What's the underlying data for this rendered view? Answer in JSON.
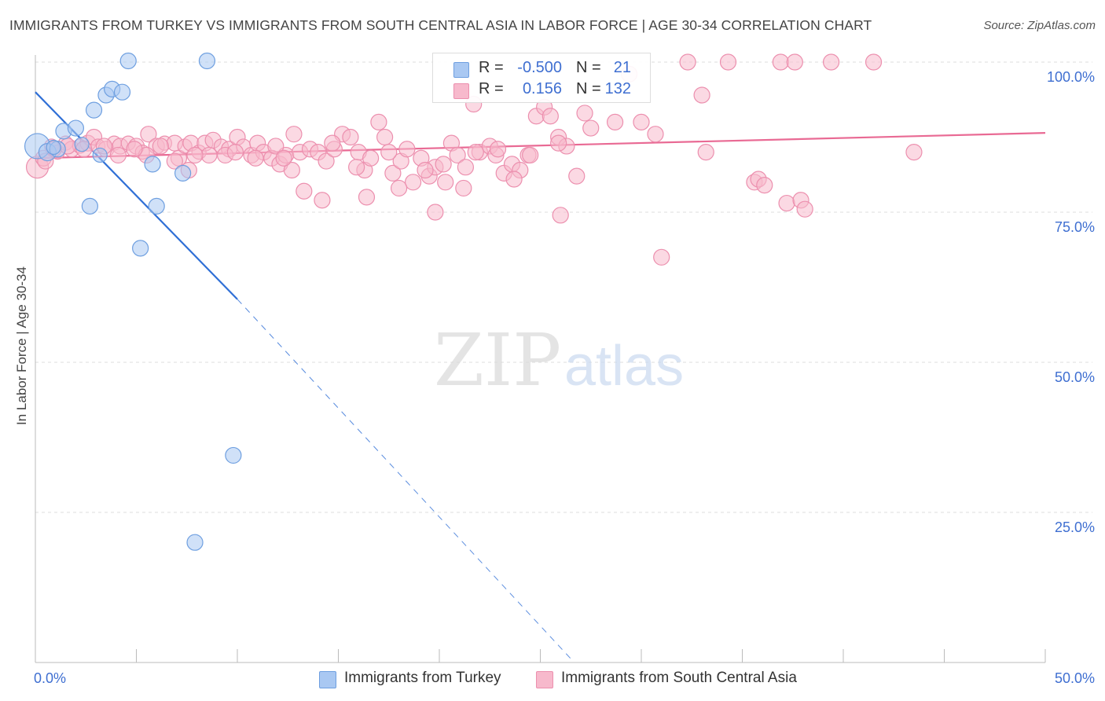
{
  "title": "IMMIGRANTS FROM TURKEY VS IMMIGRANTS FROM SOUTH CENTRAL ASIA IN LABOR FORCE | AGE 30-34 CORRELATION CHART",
  "source": "Source: ZipAtlas.com",
  "watermark": {
    "zip": "ZIP",
    "atlas": "atlas"
  },
  "colors": {
    "turkey_fill": "#a9c8f2",
    "turkey_stroke": "#6e9fe0",
    "turkey_line": "#2f6fd6",
    "sca_fill": "#f7b9cc",
    "sca_stroke": "#ec8fae",
    "sca_line": "#e96a94",
    "tick_label": "#3f6fd1",
    "grid": "#dddddd"
  },
  "stats_box": {
    "turkey": {
      "r_label": "R =",
      "r_value": "-0.500",
      "n_label": "N =",
      "n_value": "21"
    },
    "sca": {
      "r_label": "R =",
      "r_value": "0.156",
      "n_label": "N =",
      "n_value": "132"
    }
  },
  "legend": {
    "turkey": "Immigrants from Turkey",
    "sca": "Immigrants from South Central Asia"
  },
  "chart_data": {
    "type": "scatter",
    "title": "IMMIGRANTS FROM TURKEY VS IMMIGRANTS FROM SOUTH CENTRAL ASIA IN LABOR FORCE | AGE 30-34 CORRELATION CHART",
    "xlabel": "",
    "ylabel": "In Labor Force | Age 30-34",
    "xlim": [
      0,
      50
    ],
    "ylim": [
      0,
      100
    ],
    "x_tick_labels": [
      "0.0%",
      "50.0%"
    ],
    "y_ticks": [
      25,
      50,
      75,
      100
    ],
    "y_tick_labels": [
      "25.0%",
      "50.0%",
      "75.0%",
      "100.0%"
    ],
    "grid": true,
    "legend_position": "bottom",
    "series": [
      {
        "name": "Immigrants from Turkey",
        "r": -0.5,
        "n": 21,
        "trend": {
          "x_start": 0,
          "y_start": 95,
          "x_solid_end": 10,
          "y_solid_end": 60.5,
          "x_dash_end": 26.6,
          "y_dash_end": 0.3
        },
        "points": [
          [
            0.1,
            86,
            16
          ],
          [
            0.6,
            85,
            11
          ],
          [
            1.1,
            85.5,
            10
          ],
          [
            1.4,
            88.5,
            10
          ],
          [
            2.0,
            89,
            10
          ],
          [
            2.3,
            86.3,
            9
          ],
          [
            2.9,
            92,
            10
          ],
          [
            3.2,
            84.5,
            9
          ],
          [
            3.5,
            94.5,
            10
          ],
          [
            3.8,
            95.5,
            10
          ],
          [
            4.3,
            95,
            10
          ],
          [
            4.6,
            100.2,
            10
          ],
          [
            5.8,
            83,
            10
          ],
          [
            6.0,
            76,
            10
          ],
          [
            7.3,
            81.5,
            10
          ],
          [
            8.5,
            100.2,
            10
          ],
          [
            2.7,
            76,
            10
          ],
          [
            5.2,
            69,
            10
          ],
          [
            9.8,
            34.5,
            10
          ],
          [
            7.9,
            20,
            10
          ],
          [
            0.9,
            85.8,
            9
          ]
        ]
      },
      {
        "name": "Immigrants from South Central Asia",
        "r": 0.156,
        "n": 132,
        "trend": {
          "x_start": 0,
          "y_start": 84,
          "x_end": 50,
          "y_end": 88.2
        },
        "points": [
          [
            0.1,
            82.5,
            14
          ],
          [
            0.4,
            84,
            10
          ],
          [
            0.8,
            86,
            9
          ],
          [
            1.1,
            85,
            9
          ],
          [
            1.5,
            86.5,
            9
          ],
          [
            1.8,
            85.5,
            10
          ],
          [
            2.2,
            86,
            9
          ],
          [
            2.6,
            86.5,
            10
          ],
          [
            2.9,
            87.5,
            10
          ],
          [
            3.1,
            86,
            9
          ],
          [
            3.5,
            85.5,
            10
          ],
          [
            3.9,
            86.5,
            9
          ],
          [
            4.2,
            86,
            10
          ],
          [
            4.6,
            86.5,
            9
          ],
          [
            5.0,
            86,
            10
          ],
          [
            5.3,
            85,
            9
          ],
          [
            5.6,
            88,
            10
          ],
          [
            6.0,
            86,
            10
          ],
          [
            6.4,
            86.5,
            9
          ],
          [
            6.9,
            86.5,
            10
          ],
          [
            7.1,
            84,
            10
          ],
          [
            7.4,
            86,
            9
          ],
          [
            7.7,
            86.5,
            10
          ],
          [
            8.1,
            85,
            9
          ],
          [
            8.4,
            86.5,
            10
          ],
          [
            8.8,
            87,
            10
          ],
          [
            9.2,
            86,
            9
          ],
          [
            9.6,
            85.5,
            10
          ],
          [
            10.0,
            87.5,
            10
          ],
          [
            10.3,
            86,
            9
          ],
          [
            10.7,
            84.5,
            10
          ],
          [
            11.0,
            86.5,
            10
          ],
          [
            11.3,
            85,
            10
          ],
          [
            11.7,
            84,
            10
          ],
          [
            12.1,
            83,
            10
          ],
          [
            12.4,
            84.5,
            10
          ],
          [
            12.8,
            88,
            10
          ],
          [
            13.1,
            85,
            10
          ],
          [
            13.6,
            85.5,
            10
          ],
          [
            14.0,
            85,
            10
          ],
          [
            14.4,
            83.5,
            10
          ],
          [
            14.8,
            85.5,
            10
          ],
          [
            15.2,
            88,
            10
          ],
          [
            15.6,
            87.5,
            10
          ],
          [
            16.0,
            85,
            10
          ],
          [
            16.3,
            82,
            10
          ],
          [
            16.6,
            84,
            10
          ],
          [
            17.0,
            90,
            10
          ],
          [
            17.3,
            87.5,
            10
          ],
          [
            17.7,
            81.5,
            10
          ],
          [
            18.1,
            83.5,
            10
          ],
          [
            18.4,
            85.5,
            10
          ],
          [
            18.7,
            80,
            10
          ],
          [
            19.1,
            84,
            10
          ],
          [
            19.5,
            81,
            10
          ],
          [
            19.8,
            82.5,
            10
          ],
          [
            20.2,
            83,
            10
          ],
          [
            20.6,
            86.5,
            10
          ],
          [
            20.9,
            84.5,
            10
          ],
          [
            21.3,
            82.5,
            10
          ],
          [
            21.7,
            93,
            10
          ],
          [
            22.0,
            85,
            10
          ],
          [
            22.5,
            86,
            10
          ],
          [
            22.8,
            84.5,
            10
          ],
          [
            23.2,
            81.5,
            10
          ],
          [
            23.6,
            83,
            10
          ],
          [
            24.0,
            82,
            10
          ],
          [
            24.4,
            84.5,
            10
          ],
          [
            24.8,
            91,
            10
          ],
          [
            25.2,
            92.5,
            10
          ],
          [
            25.5,
            91,
            10
          ],
          [
            25.9,
            87.5,
            10
          ],
          [
            26.3,
            86,
            10
          ],
          [
            26.8,
            81,
            10
          ],
          [
            27.2,
            91.5,
            10
          ],
          [
            27.5,
            89,
            10
          ],
          [
            28.7,
            90,
            10
          ],
          [
            29.4,
            98,
            10
          ],
          [
            30.0,
            90,
            10
          ],
          [
            30.7,
            88,
            10
          ],
          [
            32.3,
            100,
            10
          ],
          [
            33.0,
            94.5,
            10
          ],
          [
            33.2,
            85,
            10
          ],
          [
            34.3,
            100,
            10
          ],
          [
            35.6,
            80,
            10
          ],
          [
            35.8,
            80.5,
            10
          ],
          [
            36.1,
            79.5,
            10
          ],
          [
            36.9,
            100,
            10
          ],
          [
            37.2,
            76.5,
            10
          ],
          [
            37.6,
            100,
            10
          ],
          [
            37.9,
            77,
            10
          ],
          [
            38.1,
            75.5,
            10
          ],
          [
            39.4,
            100,
            10
          ],
          [
            41.5,
            100,
            10
          ],
          [
            43.5,
            85,
            10
          ],
          [
            31.0,
            67.5,
            10
          ],
          [
            26.0,
            74.5,
            10
          ],
          [
            19.8,
            75,
            10
          ],
          [
            16.4,
            77.5,
            10
          ],
          [
            14.2,
            77,
            10
          ],
          [
            13.3,
            78.5,
            10
          ],
          [
            18.0,
            79,
            10
          ],
          [
            21.2,
            79,
            10
          ],
          [
            23.7,
            80.5,
            10
          ],
          [
            11.9,
            86,
            10
          ],
          [
            10.9,
            84,
            10
          ],
          [
            9.4,
            84.5,
            10
          ],
          [
            8.6,
            84.5,
            10
          ],
          [
            7.9,
            84.5,
            10
          ],
          [
            6.9,
            83.5,
            10
          ],
          [
            6.2,
            86,
            10
          ],
          [
            5.5,
            84.5,
            10
          ],
          [
            4.9,
            85.5,
            10
          ],
          [
            4.1,
            84.5,
            10
          ],
          [
            3.4,
            86,
            10
          ],
          [
            2.4,
            85.5,
            10
          ],
          [
            1.6,
            86,
            10
          ],
          [
            0.9,
            85.5,
            10
          ],
          [
            0.5,
            83.5,
            10
          ],
          [
            7.6,
            82,
            10
          ],
          [
            12.7,
            82,
            10
          ],
          [
            15.9,
            82.5,
            10
          ],
          [
            17.5,
            85,
            10
          ],
          [
            19.3,
            82,
            10
          ],
          [
            20.3,
            80,
            10
          ],
          [
            21.8,
            85,
            10
          ],
          [
            22.9,
            85.5,
            10
          ],
          [
            24.5,
            84.5,
            10
          ],
          [
            25.9,
            86.5,
            10
          ],
          [
            14.7,
            86.5,
            10
          ],
          [
            9.9,
            85,
            10
          ],
          [
            12.3,
            84,
            10
          ]
        ]
      }
    ]
  }
}
